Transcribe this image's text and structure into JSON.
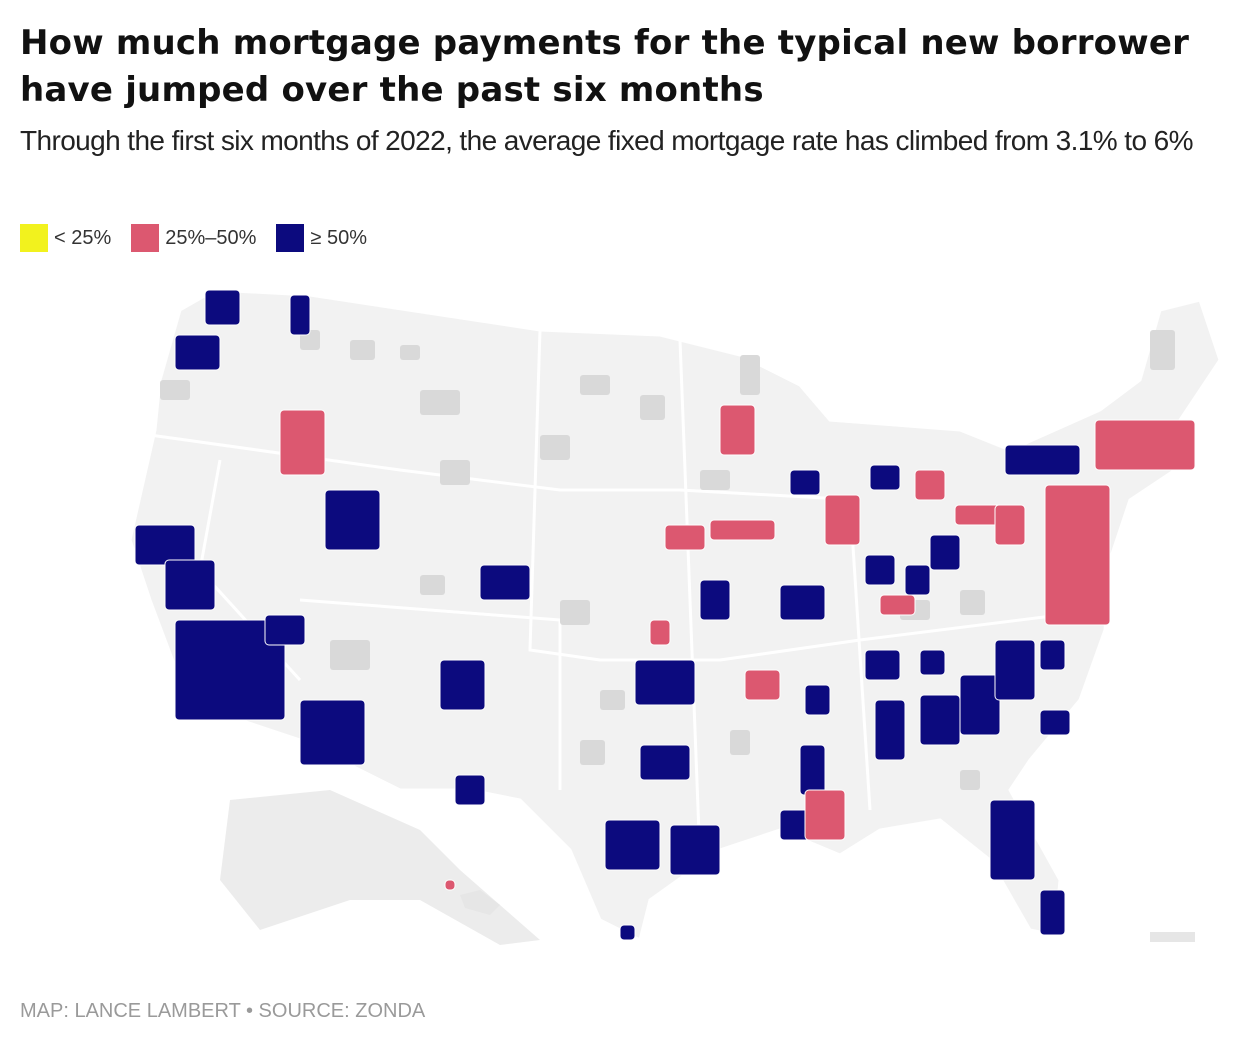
{
  "title": "How much mortgage payments for the typical new borrower have jumped over the past six months",
  "subtitle": "Through the first six months of 2022, the average fixed mortgage rate has climbed from 3.1% to 6%",
  "legend": [
    {
      "label": "< 25%",
      "color": "#f2f21e"
    },
    {
      "label": "25%–50%",
      "color": "#dc5870"
    },
    {
      "label": "≥ 50%",
      "color": "#0c0a7e"
    }
  ],
  "source": "MAP: LANCE LAMBERT • SOURCE: ZONDA"
}
